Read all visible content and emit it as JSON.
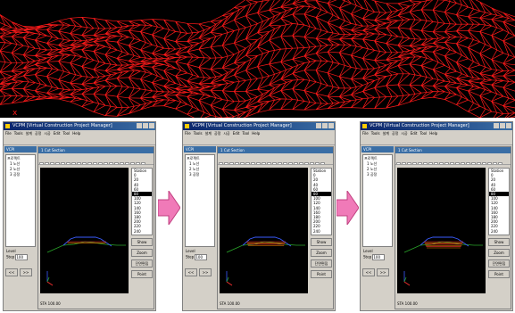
{
  "overview": {
    "marker_text": "x"
  },
  "windows": [
    {
      "title": "VCPM [Virtual Construction Project Manager]",
      "menu": [
        "File",
        "Tools",
        "설계",
        "공정",
        "시공",
        "Edit",
        "Tool",
        "Help"
      ],
      "panel_title": "VCPI",
      "tree": [
        "프로젝트",
        "1 노선",
        "2 노선",
        "3 공정"
      ],
      "level_label": "Level",
      "level_value": "100",
      "step_label": "Step",
      "buttons": [
        "<<",
        ">>"
      ],
      "doc_title": "1 Cut Section",
      "stations": [
        "Station",
        "0",
        "20",
        "40",
        "60",
        "80",
        "100",
        "120",
        "140",
        "160",
        "180",
        "200",
        "220",
        "240"
      ],
      "selected_station": 5,
      "side_buttons": [
        "Show",
        "Zoom",
        "단면편집"
      ],
      "point_label": "Point",
      "status": "STA 100.00"
    },
    {
      "title": "VCPM [Virtual Construction Project Manager]",
      "menu": [
        "File",
        "Tools",
        "설계",
        "공정",
        "시공",
        "Edit",
        "Tool",
        "Help"
      ],
      "panel_title": "VCPI",
      "tree": [
        "프로젝트",
        "1 노선",
        "2 노선",
        "3 공정"
      ],
      "level_label": "Level",
      "level_value": "100",
      "step_label": "Step",
      "buttons": [
        "<<",
        ">>"
      ],
      "doc_title": "1 Cut Section",
      "stations": [
        "Station",
        "0",
        "20",
        "40",
        "60",
        "80",
        "100",
        "120",
        "140",
        "160",
        "180",
        "200",
        "220",
        "240"
      ],
      "selected_station": 5,
      "side_buttons": [
        "Show",
        "Zoom",
        "단면편집"
      ],
      "point_label": "Point",
      "status": "STA 100.00"
    },
    {
      "title": "VCPM [Virtual Construction Project Manager]",
      "menu": [
        "File",
        "Tools",
        "설계",
        "공정",
        "시공",
        "Edit",
        "Tool",
        "Help"
      ],
      "panel_title": "VCPI",
      "tree": [
        "프로젝트",
        "1 노선",
        "2 노선",
        "3 공정"
      ],
      "level_label": "Level",
      "level_value": "100",
      "step_label": "Step",
      "buttons": [
        "<<",
        ">>"
      ],
      "doc_title": "1 Cut Section",
      "stations": [
        "Station",
        "0",
        "20",
        "40",
        "60",
        "80",
        "100",
        "120",
        "140",
        "160",
        "180",
        "200",
        "220",
        "240"
      ],
      "selected_station": 5,
      "side_buttons": [
        "Show",
        "Zoom",
        "단면편집"
      ],
      "point_label": "Point",
      "status": "STA 100.00"
    }
  ],
  "colors": {
    "wireframe": "#ff1a1a",
    "titlebar": "#0a246a",
    "arrow": "#f07ab8",
    "section_blue": "#3a5cff",
    "section_red": "#ff3030",
    "section_orange": "#ff8a00",
    "section_green": "#2aa52a"
  }
}
